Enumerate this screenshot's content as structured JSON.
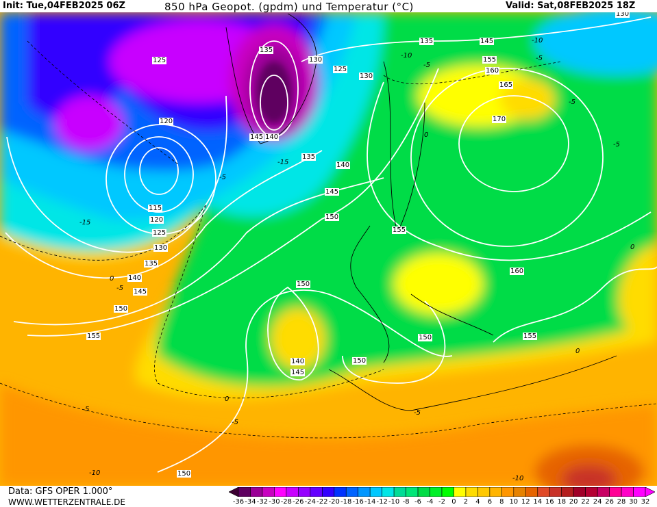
{
  "header": {
    "init": "Init: Tue,04FEB2025 06Z",
    "title": "850 hPa Geopot. (gpdm) und Temperatur (°C)",
    "valid": "Valid: Sat,08FEB2025 18Z"
  },
  "footer": {
    "data_source": "Data: GFS OPER 1.000°",
    "website": "WWW.WETTERZENTRALE.DE"
  },
  "geopotential_labels": [
    "125",
    "135",
    "130",
    "125",
    "130",
    "135",
    "145",
    "155",
    "160",
    "165",
    "170",
    "120",
    "145",
    "140",
    "135",
    "140",
    "145",
    "150",
    "155",
    "115",
    "120",
    "125",
    "130",
    "135",
    "140",
    "145",
    "150",
    "155",
    "150",
    "160",
    "150",
    "150",
    "140",
    "145",
    "150",
    "155",
    "155",
    "130",
    "155"
  ],
  "temperature_labels": [
    "-10",
    "-5",
    "-10",
    "-5",
    "-15",
    "-5",
    "-15",
    "-5",
    "0",
    "5",
    "0",
    "-5",
    "0",
    "-5",
    "-10",
    "-10",
    "-5",
    "0",
    "-5",
    "0"
  ],
  "colorbar": {
    "unit": "°C",
    "labels": [
      "-36",
      "-34",
      "-32",
      "-30",
      "-28",
      "-26",
      "-24",
      "-22",
      "-20",
      "-18",
      "-16",
      "-14",
      "-12",
      "-10",
      "-8",
      "-6",
      "-4",
      "-2",
      "0",
      "2",
      "4",
      "6",
      "8",
      "10",
      "12",
      "14",
      "16",
      "18",
      "20",
      "22",
      "24",
      "26",
      "28",
      "30",
      "32"
    ],
    "colors": [
      "#5e0060",
      "#9a0096",
      "#c800c0",
      "#ff00ff",
      "#c800ff",
      "#9600ff",
      "#6400ff",
      "#3200ff",
      "#0032ff",
      "#0064ff",
      "#0096ff",
      "#00c8ff",
      "#00e6e6",
      "#00dc96",
      "#00e678",
      "#00dc46",
      "#00f028",
      "#00ff00",
      "#ffff00",
      "#ffdc00",
      "#ffc800",
      "#ffb400",
      "#ff9600",
      "#e68200",
      "#e66400",
      "#e04a28",
      "#c83228",
      "#b41e1e",
      "#a00028",
      "#b40032",
      "#c80064",
      "#ff0096",
      "#ff00c8",
      "#ff00ff"
    ],
    "low_arrow_color": "#3c0032",
    "high_arrow_color": "#ff00ff"
  }
}
